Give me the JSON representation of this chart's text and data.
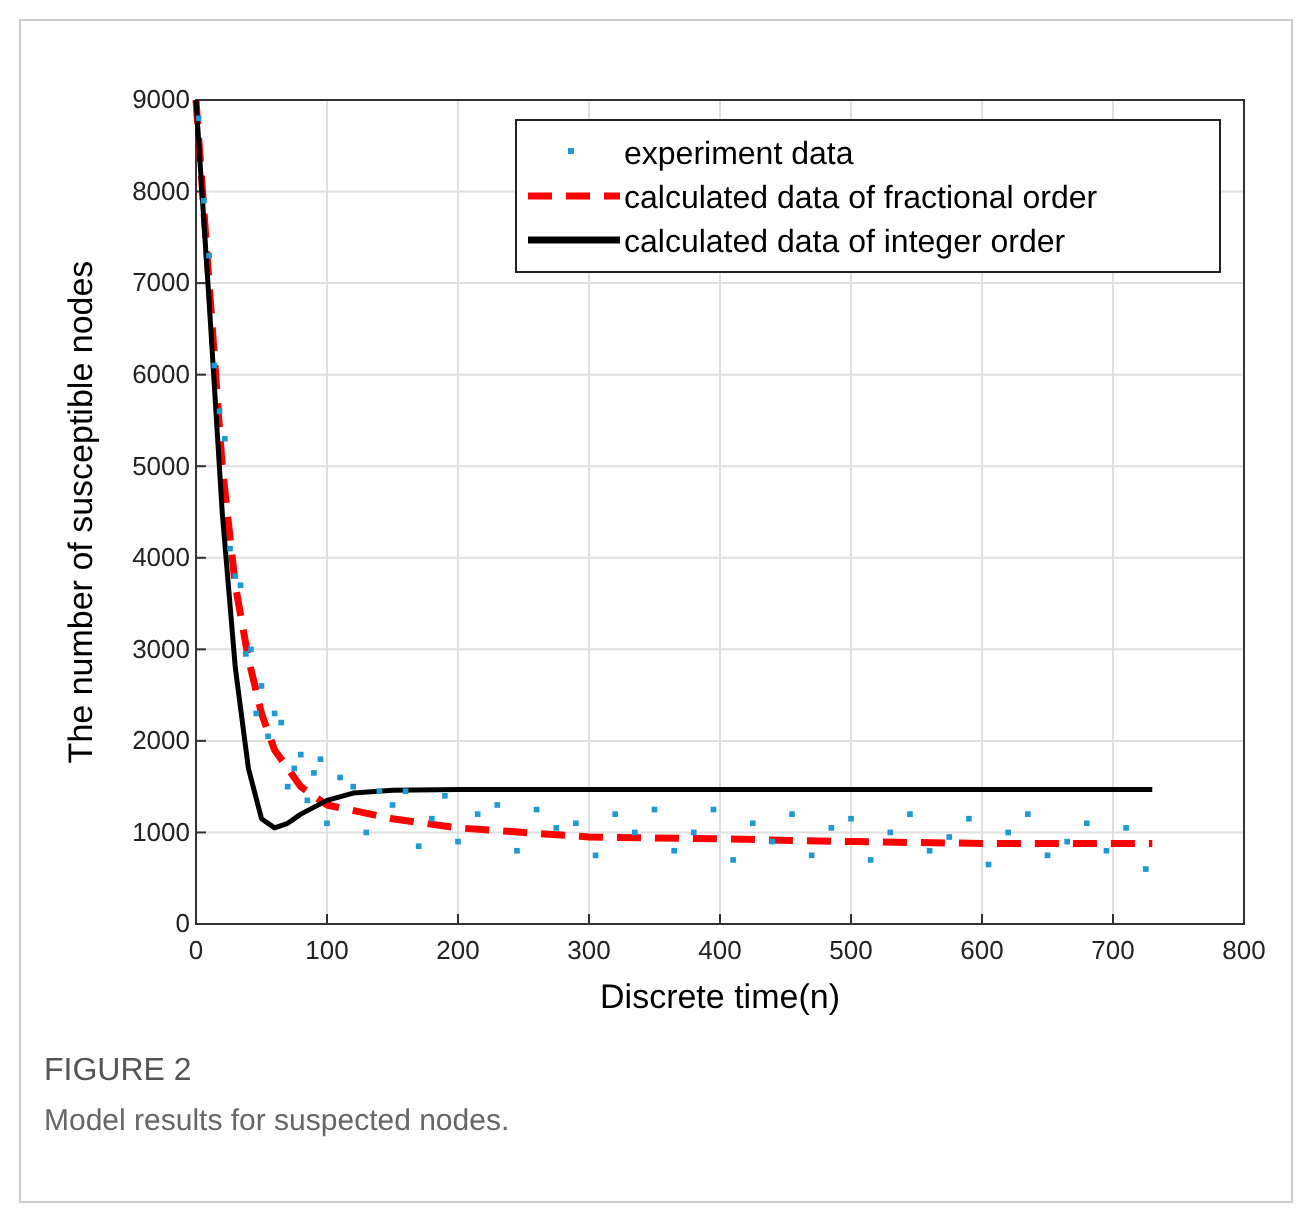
{
  "chart_data": {
    "type": "line",
    "xlabel": "Discrete time(n)",
    "ylabel": "The number of susceptible nodes",
    "xlim": [
      0,
      800
    ],
    "xticks": [
      0,
      100,
      200,
      300,
      400,
      500,
      600,
      700,
      800
    ],
    "ylim": [
      0,
      9000
    ],
    "yticks": [
      0,
      1000,
      2000,
      3000,
      4000,
      5000,
      6000,
      7000,
      8000,
      9000
    ],
    "grid": true,
    "legend": "top right",
    "annotations": [
      "FIGURE 2",
      "Model results for suspected nodes."
    ],
    "series": [
      {
        "name": "experiment data",
        "type": "scatter",
        "marker": "square",
        "color": "#1f9ad6",
        "x": [
          2,
          6,
          10,
          14,
          18,
          22,
          26,
          30,
          34,
          38,
          42,
          46,
          50,
          55,
          60,
          65,
          70,
          75,
          80,
          85,
          90,
          95,
          100,
          110,
          120,
          130,
          140,
          150,
          160,
          170,
          180,
          190,
          200,
          215,
          230,
          245,
          260,
          275,
          290,
          305,
          320,
          335,
          350,
          365,
          380,
          395,
          410,
          425,
          440,
          455,
          470,
          485,
          500,
          515,
          530,
          545,
          560,
          575,
          590,
          605,
          620,
          635,
          650,
          665,
          680,
          695,
          710,
          725
        ],
        "values": [
          8800,
          7900,
          7300,
          6100,
          5600,
          5300,
          4100,
          3800,
          3700,
          2950,
          3000,
          2300,
          2600,
          2050,
          2300,
          2200,
          1500,
          1700,
          1850,
          1350,
          1650,
          1800,
          1100,
          1600,
          1500,
          1000,
          1450,
          1300,
          1450,
          850,
          1150,
          1400,
          900,
          1200,
          1300,
          800,
          1250,
          1050,
          1100,
          750,
          1200,
          1000,
          1250,
          800,
          1000,
          1250,
          700,
          1100,
          900,
          1200,
          750,
          1050,
          1150,
          700,
          1000,
          1200,
          800,
          950,
          1150,
          650,
          1000,
          1200,
          750,
          900,
          1100,
          800,
          1050,
          600
        ]
      },
      {
        "name": "calculated data of fractional order",
        "type": "line",
        "line_style": "dashed",
        "color": "#ff0000",
        "x": [
          0,
          10,
          20,
          30,
          40,
          50,
          60,
          80,
          100,
          150,
          200,
          300,
          400,
          500,
          600,
          730
        ],
        "values": [
          9000,
          7000,
          5000,
          3700,
          2900,
          2300,
          1900,
          1500,
          1300,
          1150,
          1050,
          950,
          930,
          900,
          880,
          880
        ]
      },
      {
        "name": "calculated data of integer order",
        "type": "line",
        "line_style": "solid",
        "color": "#000000",
        "x": [
          0,
          10,
          20,
          30,
          40,
          50,
          60,
          70,
          80,
          100,
          120,
          150,
          200,
          730
        ],
        "values": [
          9000,
          6800,
          4500,
          2800,
          1700,
          1150,
          1050,
          1100,
          1200,
          1350,
          1430,
          1460,
          1470,
          1470
        ]
      }
    ]
  }
}
